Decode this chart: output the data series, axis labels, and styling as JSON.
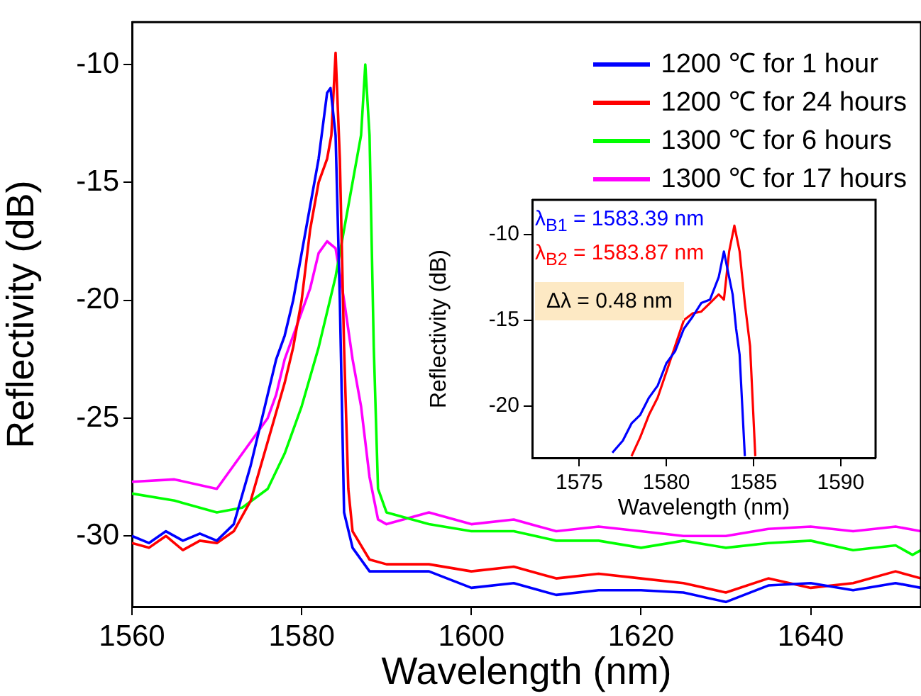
{
  "chart_data": [
    {
      "type": "line",
      "xlabel": "Wavelength (nm)",
      "ylabel": "Reflectivity (dB)",
      "xlim": [
        1560,
        1653
      ],
      "xticks": [
        1560,
        1580,
        1600,
        1620,
        1640
      ],
      "ylim": [
        -33,
        -8.2
      ],
      "yticks": [
        -30,
        -25,
        -20,
        -15,
        -10
      ],
      "grid": false,
      "legend": "top right",
      "marker": "none",
      "line_style": "solid",
      "series": [
        {
          "name": "1200 ℃ for 1 hour",
          "color": "#0000ff",
          "x": [
            1560,
            1562,
            1564,
            1566,
            1568,
            1570,
            1572,
            1574,
            1576,
            1577,
            1578,
            1579,
            1580,
            1581,
            1582,
            1583,
            1583.4,
            1584,
            1584.5,
            1585,
            1586,
            1588,
            1590,
            1595,
            1600,
            1605,
            1610,
            1615,
            1620,
            1625,
            1630,
            1635,
            1640,
            1645,
            1650,
            1653
          ],
          "values": [
            -30,
            -30.3,
            -29.8,
            -30.2,
            -29.9,
            -30.2,
            -29.5,
            -27,
            -24,
            -22.5,
            -21.5,
            -20,
            -18,
            -16,
            -14,
            -11.2,
            -11,
            -13,
            -20,
            -29,
            -30.5,
            -31.5,
            -31.5,
            -31.5,
            -32.2,
            -32,
            -32.5,
            -32.3,
            -32.3,
            -32.4,
            -32.8,
            -32.1,
            -32,
            -32.3,
            -32,
            -32.2
          ]
        },
        {
          "name": "1200 ℃ for 24 hours",
          "color": "#ff0000",
          "x": [
            1560,
            1562,
            1564,
            1566,
            1568,
            1570,
            1572,
            1574,
            1576,
            1578,
            1579,
            1580,
            1581,
            1582,
            1583,
            1583.5,
            1584,
            1584.5,
            1585,
            1585.5,
            1586,
            1588,
            1590,
            1595,
            1600,
            1605,
            1610,
            1615,
            1620,
            1625,
            1630,
            1635,
            1640,
            1645,
            1650,
            1653
          ],
          "values": [
            -30.3,
            -30.5,
            -30,
            -30.6,
            -30.2,
            -30.3,
            -29.8,
            -28.5,
            -26,
            -23.5,
            -22,
            -20,
            -17,
            -15,
            -14,
            -13,
            -9.5,
            -14,
            -22,
            -28,
            -29.8,
            -31,
            -31.2,
            -31.2,
            -31.5,
            -31.3,
            -31.8,
            -31.6,
            -31.8,
            -32,
            -32.4,
            -31.8,
            -32.2,
            -32,
            -31.5,
            -31.8
          ]
        },
        {
          "name": "1300 ℃ for 6 hours",
          "color": "#00ff00",
          "x": [
            1560,
            1565,
            1570,
            1573,
            1576,
            1578,
            1580,
            1582,
            1584,
            1585,
            1586,
            1587,
            1587.5,
            1588,
            1588.5,
            1589,
            1590,
            1595,
            1600,
            1605,
            1610,
            1615,
            1620,
            1625,
            1630,
            1635,
            1640,
            1645,
            1650,
            1652,
            1653
          ],
          "values": [
            -28.2,
            -28.5,
            -29,
            -28.8,
            -28,
            -26.5,
            -24.5,
            -22,
            -19,
            -17,
            -15,
            -13,
            -10,
            -13,
            -22,
            -28,
            -29,
            -29.5,
            -29.8,
            -29.8,
            -30.2,
            -30.2,
            -30.5,
            -30.2,
            -30.5,
            -30.3,
            -30.2,
            -30.6,
            -30.4,
            -30.8,
            -30.6
          ]
        },
        {
          "name": "1300 ℃ for 17 hours",
          "color": "#ff00ff",
          "x": [
            1560,
            1565,
            1570,
            1572,
            1574,
            1576,
            1577,
            1578,
            1580,
            1581,
            1582,
            1583,
            1584,
            1585,
            1586,
            1587,
            1588,
            1589,
            1590,
            1595,
            1600,
            1605,
            1610,
            1615,
            1620,
            1625,
            1630,
            1635,
            1640,
            1645,
            1650,
            1653
          ],
          "values": [
            -27.7,
            -27.6,
            -28,
            -27,
            -26,
            -25,
            -24,
            -22.5,
            -20.5,
            -19.5,
            -18,
            -17.5,
            -17.8,
            -20,
            -22.5,
            -24.5,
            -27.5,
            -29.3,
            -29.5,
            -29,
            -29.5,
            -29.3,
            -29.8,
            -29.6,
            -29.8,
            -30,
            -30,
            -29.7,
            -29.6,
            -29.8,
            -29.6,
            -29.8
          ]
        }
      ]
    },
    {
      "type": "line",
      "xlabel": "Wavelength (nm)",
      "ylabel": "Reflectivity (dB)",
      "xlim": [
        1572.3,
        1592
      ],
      "xticks": [
        1575,
        1580,
        1585,
        1590
      ],
      "ylim": [
        -23,
        -8
      ],
      "yticks": [
        -20,
        -15,
        -10
      ],
      "grid": false,
      "marker": "none",
      "line_style": "solid",
      "annotations": [
        "λ$_{B1}$ = 1583.39 nm",
        "λ$_{B2}$ = 1583.87 nm",
        "Δλ = 0.48 nm"
      ],
      "series": [
        {
          "color": "#0000ff",
          "x": [
            1576.9,
            1577.5,
            1578,
            1578.5,
            1579,
            1579.5,
            1580,
            1580.5,
            1581,
            1581.5,
            1582,
            1582.5,
            1583,
            1583.3,
            1583.6,
            1583.8,
            1584,
            1584.2,
            1584.5
          ],
          "values": [
            -22.7,
            -22,
            -21,
            -20.5,
            -19.5,
            -18.8,
            -17.5,
            -16.8,
            -15.5,
            -14.8,
            -14,
            -13.8,
            -12.5,
            -11,
            -12.5,
            -13.5,
            -15.5,
            -17,
            -22.9
          ]
        },
        {
          "color": "#ff0000",
          "x": [
            1578,
            1578.5,
            1579,
            1579.5,
            1580,
            1580.5,
            1581,
            1581.5,
            1582,
            1582.5,
            1583,
            1583.3,
            1583.6,
            1583.9,
            1584.2,
            1584.5,
            1584.8,
            1585.1
          ],
          "values": [
            -22.9,
            -21.8,
            -20.5,
            -19.5,
            -18,
            -16.5,
            -15,
            -14.6,
            -14.5,
            -14,
            -13.5,
            -13.8,
            -11,
            -9.5,
            -11,
            -14,
            -16.5,
            -22.9
          ]
        }
      ]
    }
  ]
}
